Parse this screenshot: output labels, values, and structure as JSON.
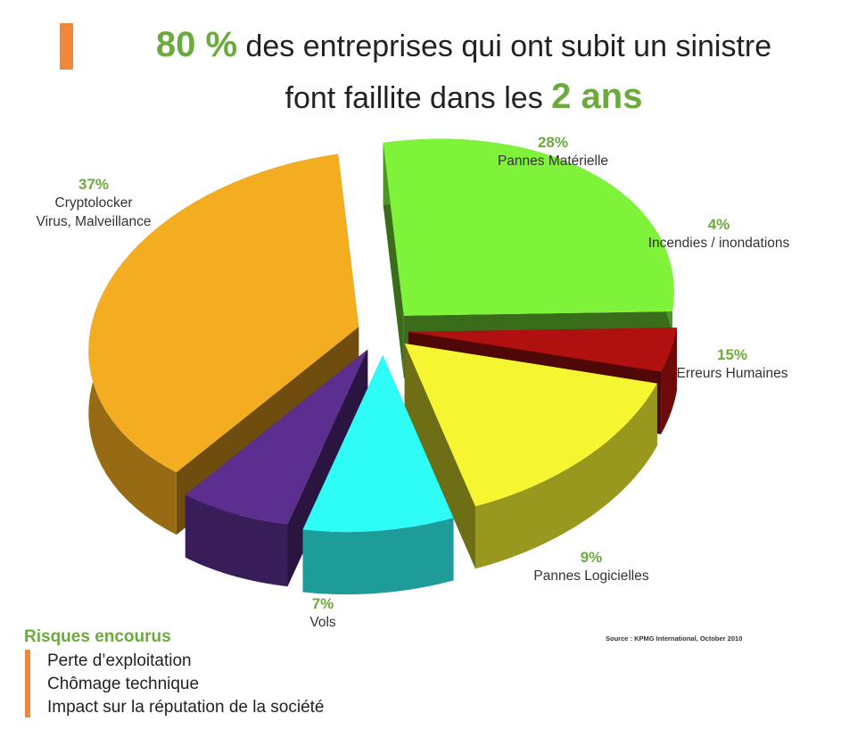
{
  "headline": {
    "percent": "80 %",
    "line1_text": " des entreprises qui ont subit un sinistre",
    "line2_text": "font faillite dans les ",
    "highlight": "2 ans"
  },
  "chart_data": {
    "type": "pie",
    "slices": [
      {
        "label": "Pannes Matérielle",
        "percent_text": "28%",
        "value": 28,
        "color": "#7FF23A"
      },
      {
        "label": "Incendies / inondations",
        "percent_text": "4%",
        "value": 4,
        "color": "#B01010"
      },
      {
        "label": "Erreurs Humaines",
        "percent_text": "15%",
        "value": 15,
        "color": "#F5F531"
      },
      {
        "label": "Pannes Logicielles",
        "percent_text": "9%",
        "value": 9,
        "color": "#2EFCF6"
      },
      {
        "label": "Vols",
        "percent_text": "7%",
        "value": 7,
        "color": "#5C2E8F"
      },
      {
        "label": [
          "Cryptolocker",
          "Virus, Malveillance"
        ],
        "percent_text": "37%",
        "value": 37,
        "color": "#F4AC21"
      }
    ],
    "source": "Source : KPMG International, October 2010"
  },
  "risks": {
    "title": "Risques encourus",
    "items": [
      "Perte d’exploitation",
      "Chômage technique",
      "Impact sur la réputation de la société"
    ]
  },
  "colors": {
    "accent_green": "#6BAA3C",
    "accent_orange": "#F0883A"
  }
}
